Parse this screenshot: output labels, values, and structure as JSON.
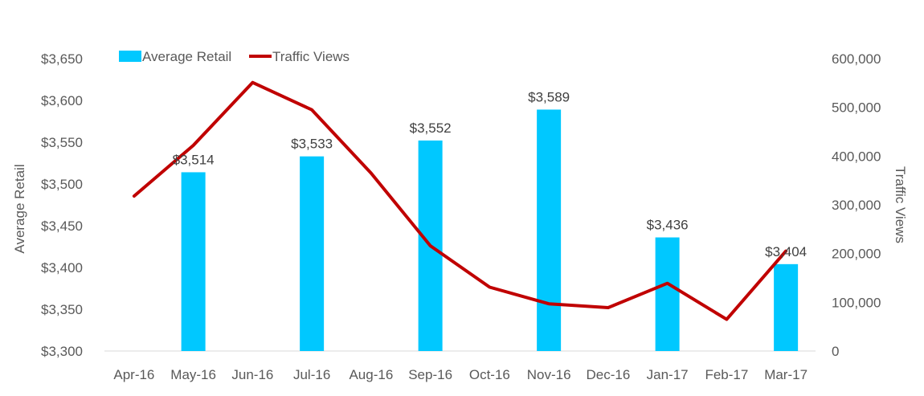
{
  "chart_data": {
    "type": "bar+line",
    "title": "",
    "categories": [
      "Apr-16",
      "May-16",
      "Jun-16",
      "Jul-16",
      "Aug-16",
      "Sep-16",
      "Oct-16",
      "Nov-16",
      "Dec-16",
      "Jan-17",
      "Feb-17",
      "Mar-17"
    ],
    "series": [
      {
        "name": "Average Retail",
        "type": "bar",
        "axis": "left",
        "color": "#00C8FF",
        "values": [
          null,
          3514,
          null,
          3533,
          null,
          3552,
          null,
          3589,
          null,
          3436,
          null,
          3404
        ],
        "data_labels": [
          "",
          "$3,514",
          "",
          "$3,533",
          "",
          "$3,552",
          "",
          "$3,589",
          "",
          "$3,436",
          "",
          "$3,404"
        ]
      },
      {
        "name": "Traffic Views",
        "type": "line",
        "axis": "right",
        "color": "#C00000",
        "values": [
          318000,
          422000,
          551000,
          495000,
          365000,
          216000,
          131000,
          97000,
          89000,
          139000,
          65000,
          205000
        ]
      }
    ],
    "y_left": {
      "label": "Average Retail",
      "min": 3300,
      "max": 3650,
      "ticks": [
        3300,
        3350,
        3400,
        3450,
        3500,
        3550,
        3600,
        3650
      ],
      "tick_labels": [
        "$3,300",
        "$3,350",
        "$3,400",
        "$3,450",
        "$3,500",
        "$3,550",
        "$3,600",
        "$3,650"
      ]
    },
    "y_right": {
      "label": "Traffic Views",
      "min": 0,
      "max": 600000,
      "ticks": [
        0,
        100000,
        200000,
        300000,
        400000,
        500000,
        600000
      ],
      "tick_labels": [
        "0",
        "100,000",
        "200,000",
        "300,000",
        "400,000",
        "500,000",
        "600,000"
      ]
    },
    "grid": false,
    "legend": {
      "position": "top-left",
      "items": [
        {
          "label": "Average Retail",
          "marker": "square",
          "color": "#00C8FF"
        },
        {
          "label": "Traffic Views",
          "marker": "line",
          "color": "#C00000"
        }
      ]
    }
  }
}
